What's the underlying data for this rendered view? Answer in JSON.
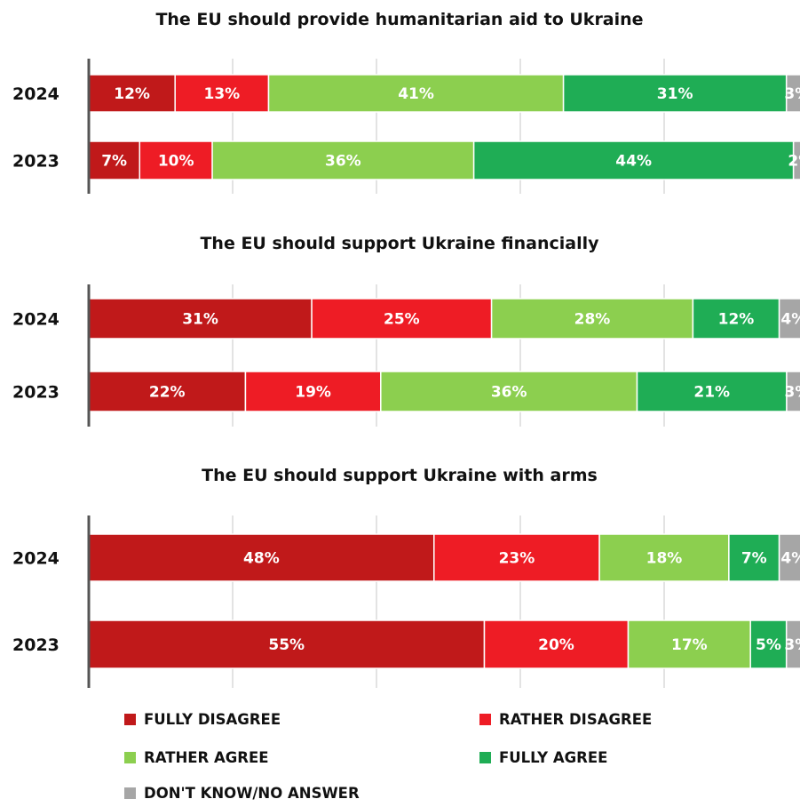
{
  "colors": {
    "fully_disagree": "#c0191a",
    "rather_disagree": "#ee1c25",
    "rather_agree": "#8ccf4f",
    "fully_agree": "#1fad55",
    "dont_know": "#a6a6a6"
  },
  "legend": [
    {
      "key": "fully_disagree",
      "label": "FULLY DISAGREE"
    },
    {
      "key": "rather_disagree",
      "label": "RATHER DISAGREE"
    },
    {
      "key": "rather_agree",
      "label": "RATHER AGREE"
    },
    {
      "key": "fully_agree",
      "label": "FULLY AGREE"
    },
    {
      "key": "dont_know",
      "label": "DON'T KNOW/NO ANSWER"
    }
  ],
  "chart_data": [
    {
      "type": "bar",
      "orientation": "horizontal",
      "stacked": true,
      "title": "The EU should provide humanitarian aid to Ukraine",
      "categories": [
        "2024",
        "2023"
      ],
      "series": [
        {
          "name": "FULLY DISAGREE",
          "key": "fully_disagree",
          "values": [
            12,
            7
          ]
        },
        {
          "name": "RATHER DISAGREE",
          "key": "rather_disagree",
          "values": [
            13,
            10
          ]
        },
        {
          "name": "RATHER AGREE",
          "key": "rather_agree",
          "values": [
            41,
            36
          ]
        },
        {
          "name": "FULLY AGREE",
          "key": "fully_agree",
          "values": [
            31,
            44
          ]
        },
        {
          "name": "DON'T KNOW/NO ANSWER",
          "key": "dont_know",
          "values": [
            3,
            2
          ]
        }
      ],
      "unit": "%"
    },
    {
      "type": "bar",
      "orientation": "horizontal",
      "stacked": true,
      "title": "The EU should support Ukraine financially",
      "categories": [
        "2024",
        "2023"
      ],
      "series": [
        {
          "name": "FULLY DISAGREE",
          "key": "fully_disagree",
          "values": [
            31,
            22
          ]
        },
        {
          "name": "RATHER DISAGREE",
          "key": "rather_disagree",
          "values": [
            25,
            19
          ]
        },
        {
          "name": "RATHER AGREE",
          "key": "rather_agree",
          "values": [
            28,
            36
          ]
        },
        {
          "name": "FULLY AGREE",
          "key": "fully_agree",
          "values": [
            12,
            21
          ]
        },
        {
          "name": "DON'T KNOW/NO ANSWER",
          "key": "dont_know",
          "values": [
            4,
            3
          ]
        }
      ],
      "unit": "%"
    },
    {
      "type": "bar",
      "orientation": "horizontal",
      "stacked": true,
      "title": "The EU should support Ukraine with arms",
      "categories": [
        "2024",
        "2023"
      ],
      "series": [
        {
          "name": "FULLY DISAGREE",
          "key": "fully_disagree",
          "values": [
            48,
            55
          ]
        },
        {
          "name": "RATHER DISAGREE",
          "key": "rather_disagree",
          "values": [
            23,
            20
          ]
        },
        {
          "name": "RATHER AGREE",
          "key": "rather_agree",
          "values": [
            18,
            17
          ]
        },
        {
          "name": "FULLY AGREE",
          "key": "fully_agree",
          "values": [
            7,
            5
          ]
        },
        {
          "name": "DON'T KNOW/NO ANSWER",
          "key": "dont_know",
          "values": [
            4,
            3
          ]
        }
      ],
      "unit": "%"
    }
  ]
}
